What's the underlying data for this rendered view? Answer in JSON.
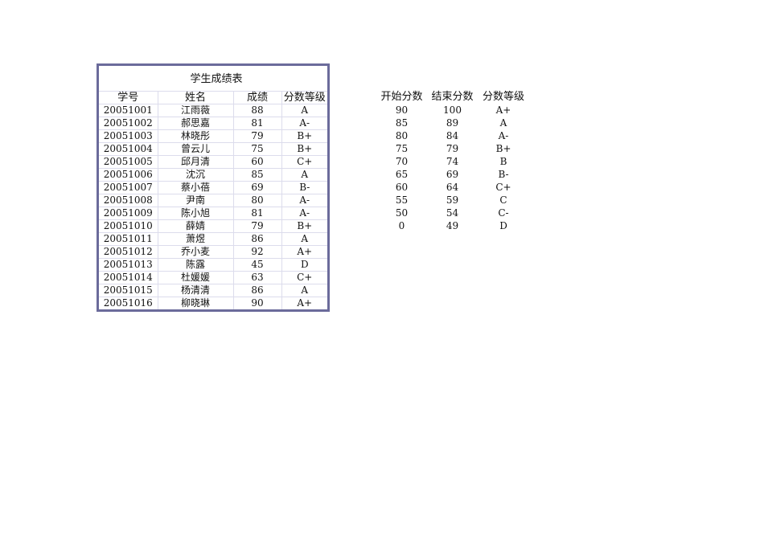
{
  "score_table": {
    "title": "学生成绩表",
    "headers": [
      "学号",
      "姓名",
      "成绩",
      "分数等级"
    ],
    "rows": [
      [
        "20051001",
        "江雨薇",
        "88",
        "A"
      ],
      [
        "20051002",
        "郝思嘉",
        "81",
        "A-"
      ],
      [
        "20051003",
        "林晓彤",
        "79",
        "B+"
      ],
      [
        "20051004",
        "曾云儿",
        "75",
        "B+"
      ],
      [
        "20051005",
        "邱月清",
        "60",
        "C+"
      ],
      [
        "20051006",
        "沈沉",
        "85",
        "A"
      ],
      [
        "20051007",
        "蔡小蓓",
        "69",
        "B-"
      ],
      [
        "20051008",
        "尹南",
        "80",
        "A-"
      ],
      [
        "20051009",
        "陈小旭",
        "81",
        "A-"
      ],
      [
        "20051010",
        "薛婧",
        "79",
        "B+"
      ],
      [
        "20051011",
        "萧煜",
        "86",
        "A"
      ],
      [
        "20051012",
        "乔小麦",
        "92",
        "A+"
      ],
      [
        "20051013",
        "陈露",
        "45",
        "D"
      ],
      [
        "20051014",
        "杜媛媛",
        "63",
        "C+"
      ],
      [
        "20051015",
        "杨清清",
        "86",
        "A"
      ],
      [
        "20051016",
        "柳晓琳",
        "90",
        "A+"
      ]
    ]
  },
  "grade_table": {
    "headers": [
      "开始分数",
      "结束分数",
      "分数等级"
    ],
    "rows": [
      [
        "90",
        "100",
        "A+"
      ],
      [
        "85",
        "89",
        "A"
      ],
      [
        "80",
        "84",
        "A-"
      ],
      [
        "75",
        "79",
        "B+"
      ],
      [
        "70",
        "74",
        "B"
      ],
      [
        "65",
        "69",
        "B-"
      ],
      [
        "60",
        "64",
        "C+"
      ],
      [
        "55",
        "59",
        "C"
      ],
      [
        "50",
        "54",
        "C-"
      ],
      [
        "0",
        "49",
        "D"
      ]
    ]
  }
}
